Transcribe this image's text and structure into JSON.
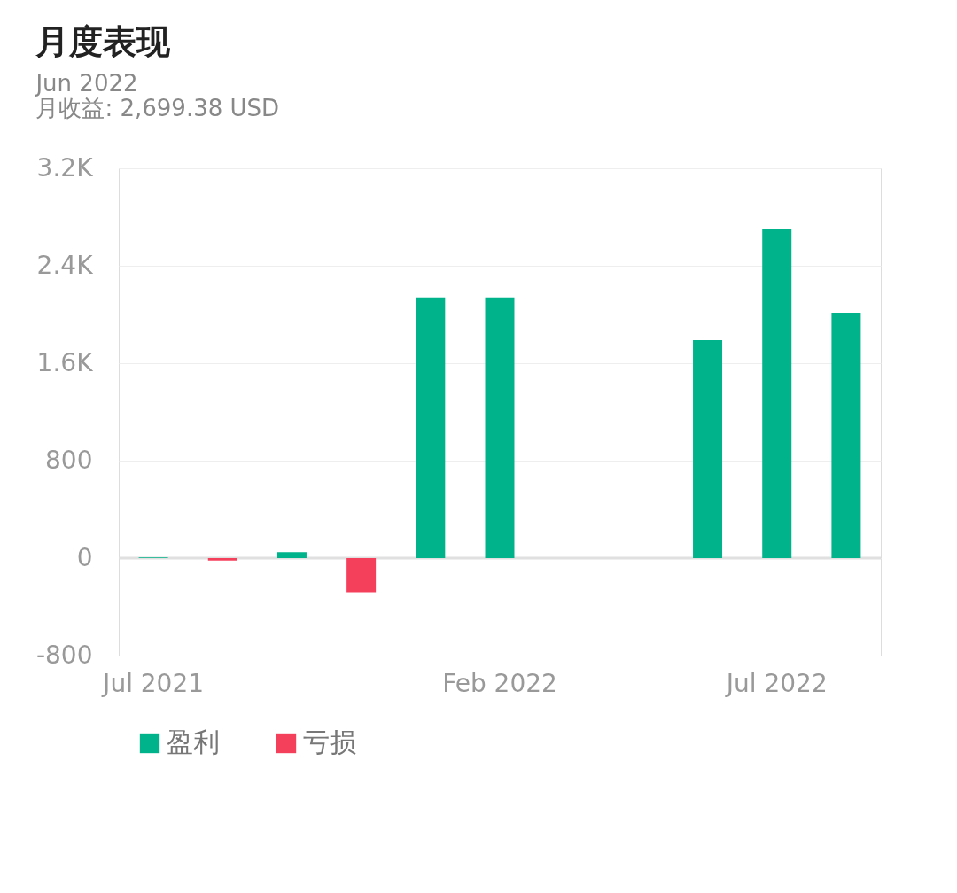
{
  "chart_data": {
    "type": "bar",
    "title": "月度表现",
    "categories": [
      "Jul 2021",
      null,
      null,
      null,
      null,
      "Feb 2022",
      null,
      null,
      null,
      "Jul 2022",
      null
    ],
    "series": [
      {
        "name": "盈利",
        "color": "#00b38a",
        "values": [
          5,
          null,
          50,
          null,
          2140,
          2140,
          null,
          null,
          1790,
          2699.38,
          2015
        ]
      },
      {
        "name": "亏损",
        "color": "#f5405c",
        "values": [
          null,
          -20,
          null,
          -280,
          null,
          null,
          null,
          null,
          null,
          null,
          null
        ]
      }
    ],
    "ylim": [
      -800,
      3200
    ],
    "yticks": [
      -800,
      0,
      800,
      {
        "value": 1600,
        "label": "1.6K"
      },
      {
        "value": 2400,
        "label": "2.4K"
      },
      {
        "value": 3200,
        "label": "3.2K"
      }
    ],
    "grid": "y",
    "legend": "bottom",
    "annotations": [
      "Jun 2022",
      "月收益: 2,699.38 USD"
    ]
  }
}
